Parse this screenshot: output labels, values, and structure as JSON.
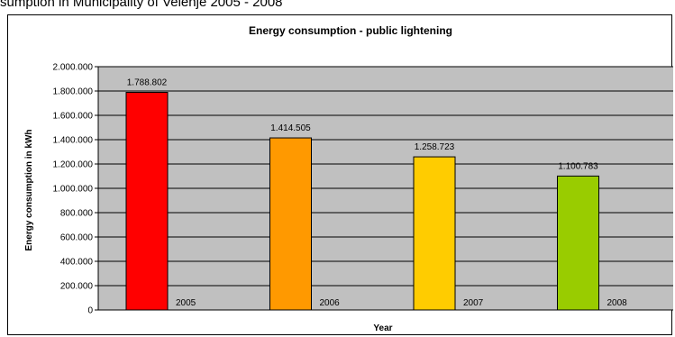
{
  "page": {
    "caption": "sumption in Municipality of Velenje 2005 - 2008"
  },
  "chart_data": {
    "type": "bar",
    "title": "Energy consumption - public lightening",
    "xlabel": "Year",
    "ylabel": "Energy consumption in kWh",
    "categories": [
      "2005",
      "2006",
      "2007",
      "2008"
    ],
    "values": [
      1788802,
      1414505,
      1258723,
      1100783
    ],
    "value_labels": [
      "1.788.802",
      "1.414.505",
      "1.258.723",
      "1.100.783"
    ],
    "bar_colors": [
      "#ff0000",
      "#ff9900",
      "#ffcc00",
      "#99cc00"
    ],
    "ylim": [
      0,
      2000000
    ],
    "y_ticks": [
      0,
      200000,
      400000,
      600000,
      800000,
      1000000,
      1200000,
      1400000,
      1600000,
      1800000,
      2000000
    ],
    "y_tick_labels": [
      "0",
      "200.000",
      "400.000",
      "600.000",
      "800.000",
      "1.000.000",
      "1.200.000",
      "1.400.000",
      "1.600.000",
      "1.800.000",
      "2.000.000"
    ],
    "grid": true,
    "plot_background": "#c0c0c0",
    "legend": "none"
  }
}
